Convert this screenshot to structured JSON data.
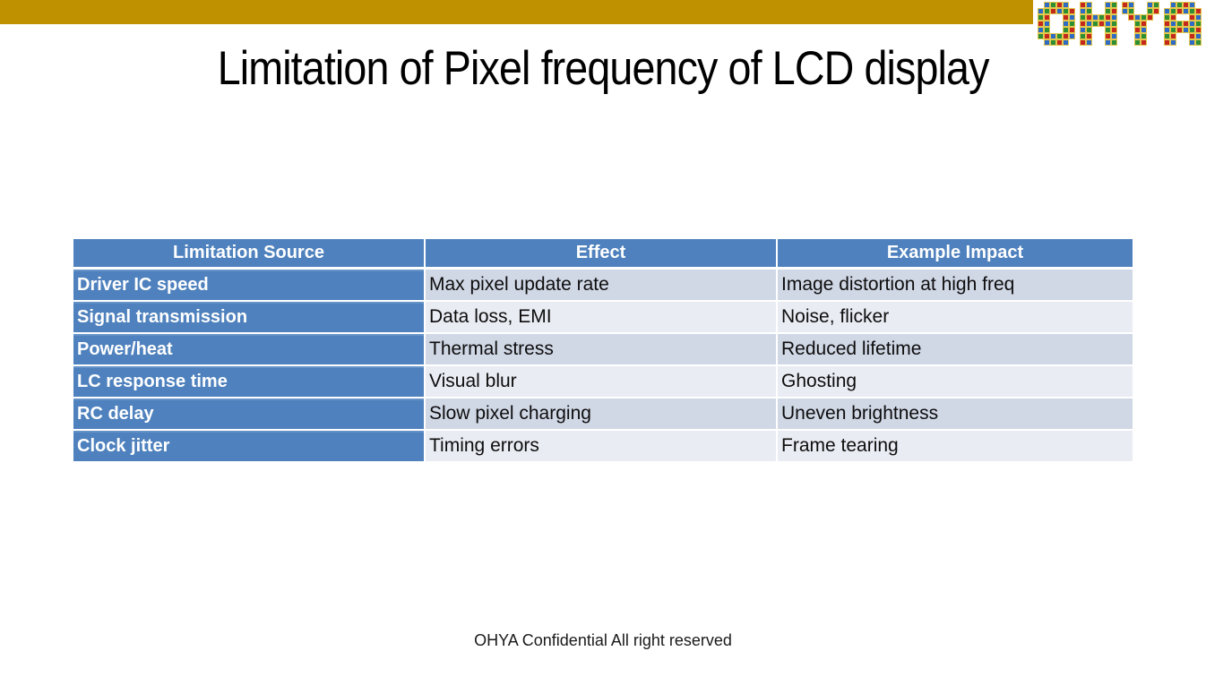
{
  "slide": {
    "title": "Limitation of Pixel frequency of LCD display",
    "footer": "OHYA Confidential All right reserved"
  },
  "logo": {
    "text": "OHYA",
    "tile_colors": [
      "#c5281c",
      "#2e8f35",
      "#2f6bc4"
    ],
    "grid_line_color": "#e3c84e"
  },
  "colors": {
    "top_bar_gold": "#bf9000",
    "table_header_blue": "#4e81bd",
    "row_label_blue": "#4e81bd",
    "band_dark": "#d0d7e5",
    "band_light": "#e9ecf3",
    "header_text": "#ffffff",
    "body_text": "#0d0d0d"
  },
  "table": {
    "columns": [
      "Limitation Source",
      "Effect",
      "Example Impact"
    ],
    "rows": [
      {
        "source": "Driver IC speed",
        "effect": "Max pixel update rate",
        "impact": "Image distortion at high freq"
      },
      {
        "source": "Signal transmission",
        "effect": "Data loss, EMI",
        "impact": "Noise, flicker"
      },
      {
        "source": "Power/heat",
        "effect": "Thermal stress",
        "impact": "Reduced lifetime"
      },
      {
        "source": "LC response time",
        "effect": "Visual blur",
        "impact": "Ghosting"
      },
      {
        "source": "RC delay",
        "effect": "Slow pixel charging",
        "impact": "Uneven brightness"
      },
      {
        "source": "Clock jitter",
        "effect": "Timing errors",
        "impact": "Frame tearing"
      }
    ]
  }
}
